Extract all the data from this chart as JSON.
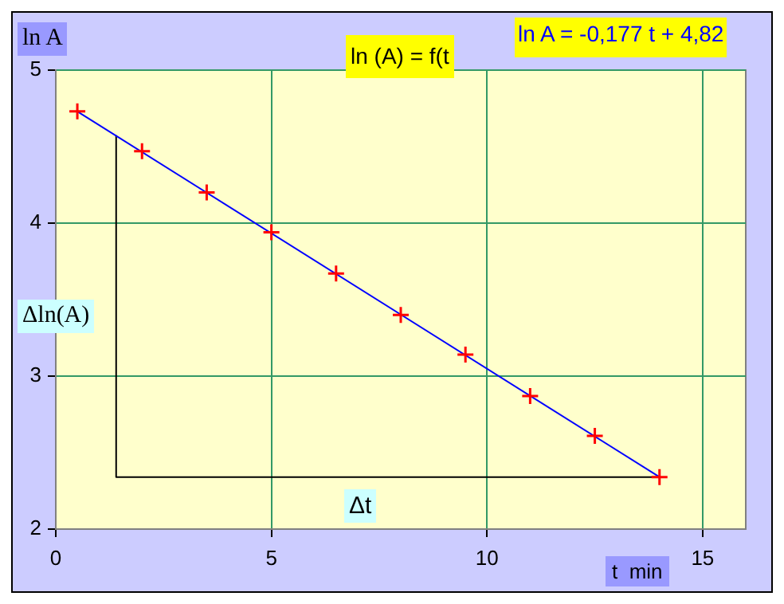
{
  "chart_data": {
    "type": "scatter",
    "title": "ln (A) = f(t",
    "xlabel": "t  min",
    "ylabel": "ln A",
    "annotations": [
      "ln A  = -0,177 t + 4,82",
      "Δln(A)",
      "Δt"
    ],
    "series": [
      {
        "color": "#ff0000",
        "marker": "cross",
        "x": [
          0.5,
          2,
          3.5,
          5,
          6.5,
          8,
          9.5,
          11,
          12.5,
          14
        ],
        "values": [
          4.73,
          4.47,
          4.2,
          3.94,
          3.67,
          3.4,
          3.14,
          2.87,
          2.61,
          2.34
        ]
      },
      {
        "type": "line",
        "color": "#0000ff",
        "marker": "none",
        "x": [
          0.5,
          14
        ],
        "values": [
          4.73,
          2.34
        ]
      },
      {
        "type": "line",
        "color": "#000000",
        "marker": "none",
        "x": [
          1.4,
          1.4,
          14
        ],
        "values": [
          4.57,
          2.34,
          2.34
        ]
      }
    ],
    "xlim": [
      0,
      16
    ],
    "xticks": [
      0,
      5,
      10,
      15
    ],
    "ylim": [
      2,
      5
    ],
    "yticks": [
      2,
      3,
      4,
      5
    ],
    "grid": true
  }
}
